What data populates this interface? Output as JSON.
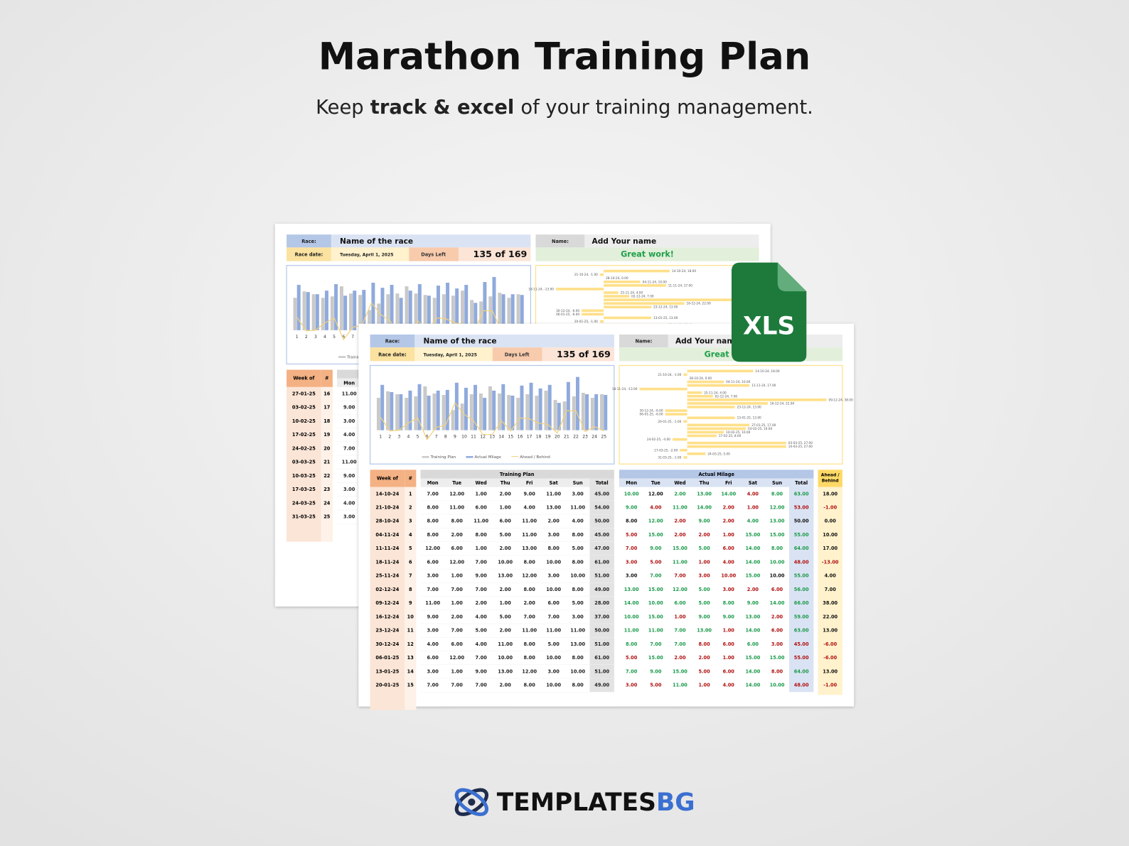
{
  "header": {
    "title": "Marathon Training Plan",
    "subtitle": [
      {
        "text": "Keep",
        "bold": false
      },
      {
        "text": "track & excel",
        "bold": true
      },
      {
        "text": "of your training management.",
        "bold": false
      }
    ]
  },
  "badge": "XLS",
  "logo": {
    "name": "TEMPLATES",
    "accent": "BG"
  },
  "sheets": [
    {
      "race_label": "Race:",
      "race_name": "Name of the race",
      "date_label": "Race date:",
      "date": "Tuesday, April 1, 2025",
      "days_label": "Days Left",
      "days": "135 of 169",
      "name_label": "Name:",
      "name": "Add Your name",
      "status": "Great work!",
      "table": {
        "week_header": "Week of",
        "num_header": "#",
        "days": [
          "Mon"
        ],
        "rows": [
          {
            "week": "27-01-25",
            "num": "16",
            "plan": [
              "11.00"
            ]
          },
          {
            "week": "03-02-25",
            "num": "17",
            "plan": [
              "9.00"
            ]
          },
          {
            "week": "10-02-25",
            "num": "18",
            "plan": [
              "3.00"
            ]
          },
          {
            "week": "17-02-25",
            "num": "19",
            "plan": [
              "4.00"
            ]
          },
          {
            "week": "24-02-25",
            "num": "20",
            "plan": [
              "7.00"
            ]
          },
          {
            "week": "03-03-25",
            "num": "21",
            "plan": [
              "11.00"
            ]
          },
          {
            "week": "10-03-25",
            "num": "22",
            "plan": [
              "9.00"
            ]
          },
          {
            "week": "17-03-25",
            "num": "23",
            "plan": [
              "3.00"
            ]
          },
          {
            "week": "24-03-25",
            "num": "24",
            "plan": [
              "4.00"
            ]
          },
          {
            "week": "31-03-25",
            "num": "25",
            "plan": [
              "3.00"
            ]
          }
        ]
      }
    },
    {
      "race_label": "Race:",
      "race_name": "Name of the race",
      "date_label": "Race date:",
      "date": "Tuesday, April 1, 2025",
      "days_label": "Days Left",
      "days": "135 of 169",
      "name_label": "Name:",
      "name": "Add Your name",
      "status": "Great work!",
      "table": {
        "week_header": "Week of",
        "num_header": "#",
        "plan_header": "Training Plan",
        "actual_header": "Actual Milage",
        "ahead_header": [
          "Ahead /",
          "Behind"
        ],
        "days": [
          "Mon",
          "Tue",
          "Wed",
          "Thu",
          "Fri",
          "Sat",
          "Sun",
          "Total"
        ],
        "rows": [
          {
            "week": "14-10-24",
            "num": "1",
            "plan": [
              "7.00",
              "12.00",
              "1.00",
              "2.00",
              "9.00",
              "11.00",
              "3.00",
              "45.00"
            ],
            "actual": [
              "10.00",
              "12.00",
              "2.00",
              "13.00",
              "14.00",
              "4.00",
              "8.00",
              "63.00"
            ],
            "ahead": "18.00"
          },
          {
            "week": "21-10-24",
            "num": "2",
            "plan": [
              "8.00",
              "11.00",
              "6.00",
              "1.00",
              "4.00",
              "13.00",
              "11.00",
              "54.00"
            ],
            "actual": [
              "9.00",
              "4.00",
              "11.00",
              "14.00",
              "2.00",
              "1.00",
              "12.00",
              "53.00"
            ],
            "ahead": "-1.00"
          },
          {
            "week": "28-10-24",
            "num": "3",
            "plan": [
              "8.00",
              "8.00",
              "11.00",
              "6.00",
              "11.00",
              "2.00",
              "4.00",
              "50.00"
            ],
            "actual": [
              "8.00",
              "12.00",
              "2.00",
              "9.00",
              "2.00",
              "4.00",
              "13.00",
              "50.00"
            ],
            "ahead": "0.00"
          },
          {
            "week": "04-11-24",
            "num": "4",
            "plan": [
              "8.00",
              "2.00",
              "8.00",
              "5.00",
              "11.00",
              "3.00",
              "8.00",
              "45.00"
            ],
            "actual": [
              "5.00",
              "15.00",
              "2.00",
              "2.00",
              "1.00",
              "15.00",
              "15.00",
              "55.00"
            ],
            "ahead": "10.00"
          },
          {
            "week": "11-11-24",
            "num": "5",
            "plan": [
              "12.00",
              "6.00",
              "1.00",
              "2.00",
              "13.00",
              "8.00",
              "5.00",
              "47.00"
            ],
            "actual": [
              "7.00",
              "9.00",
              "15.00",
              "5.00",
              "6.00",
              "14.00",
              "8.00",
              "64.00"
            ],
            "ahead": "17.00"
          },
          {
            "week": "18-11-24",
            "num": "6",
            "plan": [
              "6.00",
              "12.00",
              "7.00",
              "10.00",
              "8.00",
              "10.00",
              "8.00",
              "61.00"
            ],
            "actual": [
              "3.00",
              "5.00",
              "11.00",
              "1.00",
              "4.00",
              "14.00",
              "10.00",
              "48.00"
            ],
            "ahead": "-13.00"
          },
          {
            "week": "25-11-24",
            "num": "7",
            "plan": [
              "3.00",
              "1.00",
              "9.00",
              "13.00",
              "12.00",
              "3.00",
              "10.00",
              "51.00"
            ],
            "actual": [
              "3.00",
              "7.00",
              "7.00",
              "3.00",
              "10.00",
              "15.00",
              "10.00",
              "55.00"
            ],
            "ahead": "4.00"
          },
          {
            "week": "02-12-24",
            "num": "8",
            "plan": [
              "7.00",
              "7.00",
              "7.00",
              "2.00",
              "8.00",
              "10.00",
              "8.00",
              "49.00"
            ],
            "actual": [
              "13.00",
              "15.00",
              "12.00",
              "5.00",
              "3.00",
              "2.00",
              "6.00",
              "56.00"
            ],
            "ahead": "7.00"
          },
          {
            "week": "09-12-24",
            "num": "9",
            "plan": [
              "11.00",
              "1.00",
              "2.00",
              "1.00",
              "2.00",
              "6.00",
              "5.00",
              "28.00"
            ],
            "actual": [
              "14.00",
              "10.00",
              "6.00",
              "5.00",
              "8.00",
              "9.00",
              "14.00",
              "66.00"
            ],
            "ahead": "38.00"
          },
          {
            "week": "16-12-24",
            "num": "10",
            "plan": [
              "9.00",
              "2.00",
              "4.00",
              "5.00",
              "7.00",
              "7.00",
              "3.00",
              "37.00"
            ],
            "actual": [
              "10.00",
              "15.00",
              "1.00",
              "9.00",
              "9.00",
              "13.00",
              "2.00",
              "59.00"
            ],
            "ahead": "22.00"
          },
          {
            "week": "23-12-24",
            "num": "11",
            "plan": [
              "3.00",
              "7.00",
              "5.00",
              "2.00",
              "11.00",
              "11.00",
              "11.00",
              "50.00"
            ],
            "actual": [
              "11.00",
              "11.00",
              "7.00",
              "13.00",
              "1.00",
              "14.00",
              "6.00",
              "63.00"
            ],
            "ahead": "13.00"
          },
          {
            "week": "30-12-24",
            "num": "12",
            "plan": [
              "4.00",
              "6.00",
              "4.00",
              "11.00",
              "8.00",
              "5.00",
              "13.00",
              "51.00"
            ],
            "actual": [
              "8.00",
              "7.00",
              "7.00",
              "8.00",
              "6.00",
              "6.00",
              "3.00",
              "45.00"
            ],
            "ahead": "-6.00"
          },
          {
            "week": "06-01-25",
            "num": "13",
            "plan": [
              "6.00",
              "12.00",
              "7.00",
              "10.00",
              "8.00",
              "10.00",
              "8.00",
              "61.00"
            ],
            "actual": [
              "5.00",
              "15.00",
              "2.00",
              "2.00",
              "1.00",
              "15.00",
              "15.00",
              "55.00"
            ],
            "ahead": "-6.00"
          },
          {
            "week": "13-01-25",
            "num": "14",
            "plan": [
              "3.00",
              "1.00",
              "9.00",
              "13.00",
              "12.00",
              "3.00",
              "10.00",
              "51.00"
            ],
            "actual": [
              "7.00",
              "9.00",
              "15.00",
              "5.00",
              "6.00",
              "14.00",
              "8.00",
              "64.00"
            ],
            "ahead": "13.00"
          },
          {
            "week": "20-01-25",
            "num": "15",
            "plan": [
              "7.00",
              "7.00",
              "7.00",
              "2.00",
              "8.00",
              "10.00",
              "8.00",
              "49.00"
            ],
            "actual": [
              "3.00",
              "5.00",
              "11.00",
              "1.00",
              "4.00",
              "14.00",
              "10.00",
              "48.00"
            ],
            "ahead": "-1.00"
          }
        ]
      }
    }
  ],
  "chart_data": [
    {
      "type": "bar",
      "categories": [
        1,
        2,
        3,
        4,
        5,
        6,
        7,
        8,
        9,
        10,
        11,
        12,
        13,
        14,
        15,
        16,
        17,
        18,
        19,
        20,
        21,
        22,
        23,
        24,
        25
      ],
      "ylim": [
        -20,
        80
      ],
      "series": [
        {
          "name": "Training Plan",
          "color": "#c9c9c9",
          "values": [
            45,
            54,
            50,
            45,
            47,
            61,
            51,
            49,
            28,
            37,
            50,
            51,
            61,
            51,
            49,
            45,
            50,
            48,
            55,
            42,
            40,
            47,
            52,
            45,
            50
          ]
        },
        {
          "name": "Actual Milage",
          "color": "#8faadc",
          "values": [
            63,
            53,
            50,
            55,
            64,
            48,
            55,
            56,
            66,
            59,
            63,
            45,
            55,
            64,
            48,
            62,
            66,
            58,
            63,
            38,
            67,
            74,
            50,
            50,
            49
          ]
        },
        {
          "name": "Ahead / Behind",
          "color": "#f4d27a",
          "type": "line",
          "values": [
            18,
            -1,
            0,
            10,
            17,
            -13,
            4,
            7,
            38,
            22,
            13,
            -6,
            -6,
            13,
            -1,
            17,
            16,
            10,
            8,
            -4,
            27,
            27,
            -2,
            5,
            -1
          ]
        }
      ]
    },
    {
      "type": "hbar",
      "color": "#ffe08a",
      "xlim": [
        -15,
        40
      ],
      "categories": [
        "14-10-24",
        "21-10-24",
        "28-10-24",
        "04-11-24",
        "11-11-24",
        "18-11-24",
        "25-11-24",
        "02-12-24",
        "09-12-24",
        "16-12-24",
        "23-12-24",
        "30-12-24",
        "06-01-25",
        "13-01-25",
        "20-01-25",
        "27-01-25",
        "03-02-25",
        "10-02-25",
        "17-02-25",
        "24-02-25",
        "03-03-25",
        "10-03-25",
        "17-03-25",
        "24-03-25",
        "31-03-25"
      ],
      "values": [
        18,
        -1,
        0,
        10,
        17,
        -13,
        4,
        7,
        38,
        22,
        13,
        -6,
        -6,
        13,
        -1,
        17,
        16,
        10,
        8,
        -4,
        27,
        27,
        -2,
        5,
        -1
      ],
      "value_labels": [
        "14-10-24, 18.00",
        "21-10-24, -1.00",
        "28-10-24, 0.00",
        "04-11-24, 10.00",
        "11-11-24, 17.00",
        "18-11-24, -13.00",
        "25-11-24, 4.00",
        "02-12-24, 7.00",
        "09-12-24, 38.00",
        "16-12-24, 22.00",
        "23-12-24, 13.00",
        "30-12-24, -6.00",
        "06-01-25, -6.00",
        "13-01-25, 13.00",
        "20-01-25, -1.00",
        "27-01-25, 17.00",
        "03-02-25, 16.00",
        "10-02-25, 10.00",
        "17-02-25, 8.00",
        "24-02-25, -4.00",
        "03-03-25, 27.00",
        "10-03-25, 27.00",
        "17-03-25, -2.00",
        "24-03-25, 5.00",
        "31-03-25, -1.00"
      ]
    }
  ]
}
